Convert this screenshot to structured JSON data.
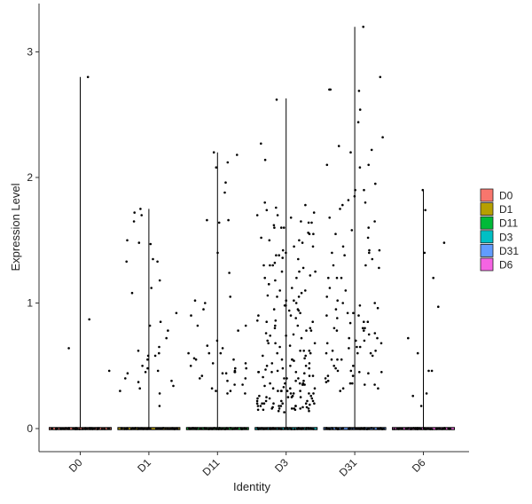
{
  "chart_data": {
    "type": "violin",
    "xlabel": "Identity",
    "ylabel": "Expression Level",
    "ylim": [
      -0.18,
      3.3
    ],
    "yticks": [
      0,
      1,
      2,
      3
    ],
    "categories": [
      "D0",
      "D1",
      "D11",
      "D3",
      "D31",
      "D6"
    ],
    "violins": [
      {
        "name": "D0",
        "max": 2.8,
        "color": "#F8766D"
      },
      {
        "name": "D1",
        "max": 1.75,
        "color": "#B79F00"
      },
      {
        "name": "D11",
        "max": 2.2,
        "color": "#00BA38"
      },
      {
        "name": "D3",
        "max": 2.63,
        "color": "#00BFC4"
      },
      {
        "name": "D31",
        "max": 3.2,
        "color": "#619CFF"
      },
      {
        "name": "D6",
        "max": 1.9,
        "color": "#F564E3"
      }
    ],
    "points": [
      {
        "group": "D0",
        "values": [
          0.87,
          0.64,
          2.8,
          0.46
        ]
      },
      {
        "group": "D1",
        "values": [
          1.72,
          1.47,
          1.33,
          1.18,
          0.6,
          0.58,
          0.46,
          0.34,
          0.18,
          1.5,
          1.35,
          1.08,
          0.65,
          0.45,
          0.37,
          0.28,
          1.75,
          1.7,
          1.65,
          1.48,
          1.33,
          1.12,
          0.92,
          0.85,
          0.82,
          0.78,
          0.72,
          0.62,
          0.55,
          0.48,
          0.44,
          0.38,
          0.32,
          0.3,
          0.58,
          0.5,
          0.4
        ]
      },
      {
        "group": "D11",
        "values": [
          2.2,
          1.96,
          1.88,
          1.66,
          1.02,
          0.64,
          0.6,
          0.55,
          0.52,
          0.5,
          0.48,
          0.46,
          0.45,
          0.42,
          0.4,
          0.38,
          0.35,
          0.32,
          0.3,
          0.28,
          2.12,
          2.08,
          1.66,
          1.64,
          1.4,
          1.24,
          1.05,
          1.0,
          0.95,
          0.9,
          0.82,
          0.78,
          0.7,
          0.66,
          0.6,
          0.56,
          0.52,
          0.48,
          0.44,
          0.4,
          0.35,
          0.3,
          2.18,
          0.82,
          0.44,
          0.28,
          0.55,
          0.45,
          0.6
        ]
      },
      {
        "group": "D3",
        "values": [
          2.14,
          1.78,
          1.74,
          1.7,
          1.65,
          1.6,
          1.55,
          1.5,
          1.45,
          1.38,
          1.3,
          1.25,
          1.15,
          1.1,
          1.05,
          0.98,
          0.92,
          0.88,
          0.82,
          0.78,
          0.72,
          0.68,
          0.62,
          0.58,
          0.55,
          0.52,
          0.48,
          0.45,
          0.42,
          0.4,
          0.38,
          0.35,
          0.33,
          0.3,
          0.28,
          0.26,
          0.24,
          0.22,
          0.2,
          0.18,
          0.16,
          0.15,
          0.14,
          0.13,
          0.5,
          0.35,
          0.25,
          0.22,
          0.2,
          0.18,
          0.16,
          0.45,
          0.3,
          2.62,
          2.27,
          1.8,
          1.76,
          1.72,
          1.68,
          1.64,
          1.6,
          1.56,
          1.52,
          1.48,
          1.42,
          1.36,
          1.32,
          1.28,
          1.22,
          1.18,
          1.12,
          1.06,
          1.02,
          0.98,
          0.94,
          0.9,
          0.86,
          0.82,
          0.78,
          0.74,
          0.7,
          0.66,
          0.62,
          0.58,
          0.54,
          0.5,
          0.47,
          0.44,
          0.41,
          0.38,
          0.36,
          0.34,
          0.32,
          0.3,
          0.28,
          0.26,
          0.24,
          0.22,
          0.2,
          0.19,
          0.18,
          0.17,
          0.16,
          0.15,
          0.14,
          1.25,
          1.08,
          0.95,
          0.85,
          0.76,
          0.68,
          0.6,
          0.52,
          0.46,
          0.4,
          0.36,
          0.32,
          0.28,
          0.25,
          0.22,
          0.2,
          0.18,
          0.17,
          0.16,
          1.64,
          1.5,
          1.38,
          1.3,
          1.2,
          1.1,
          1.02,
          0.94,
          0.86,
          0.8,
          0.74,
          0.68,
          0.62,
          0.56,
          0.5,
          0.45,
          0.4,
          0.36,
          0.32,
          0.28,
          0.26,
          0.24,
          0.22,
          0.2,
          0.18,
          0.17,
          0.16,
          0.15,
          1.7,
          1.62,
          1.55,
          1.45,
          1.35,
          1.25,
          1.15,
          1.05,
          0.95,
          0.85,
          0.75,
          0.65,
          0.55,
          0.48,
          0.42,
          0.36,
          0.3,
          0.25,
          0.2,
          0.16,
          1.6,
          1.4,
          1.2,
          1.0,
          0.8,
          0.6,
          0.45,
          0.35,
          0.25,
          0.18,
          1.3,
          0.9,
          0.55,
          0.3,
          0.2
        ]
      },
      {
        "group": "D31",
        "values": [
          2.54,
          2.1,
          2.08,
          1.9,
          1.65,
          1.52,
          1.3,
          1.2,
          1.1,
          1.0,
          0.95,
          0.9,
          0.85,
          0.8,
          0.78,
          0.75,
          0.72,
          0.7,
          0.68,
          0.65,
          0.62,
          0.6,
          0.55,
          0.5,
          0.46,
          0.44,
          0.4,
          0.37,
          2.7,
          2.7,
          2.69,
          2.2,
          2.1,
          1.95,
          1.85,
          1.8,
          1.75,
          1.68,
          1.6,
          1.55,
          1.45,
          1.4,
          1.35,
          1.28,
          1.2,
          1.12,
          1.05,
          1.0,
          0.96,
          0.92,
          0.88,
          0.84,
          0.8,
          0.76,
          0.72,
          0.68,
          0.64,
          0.6,
          0.55,
          0.5,
          0.46,
          0.42,
          0.38,
          0.35,
          0.32,
          0.3,
          2.44,
          2.32,
          1.82,
          1.78,
          1.42,
          1.02,
          0.98,
          0.92,
          0.85,
          0.78,
          0.7,
          0.62,
          0.55,
          0.48,
          0.42,
          0.36,
          0.32,
          2.8,
          2.22,
          1.42,
          1.38,
          1.2,
          0.8,
          0.6,
          0.45,
          0.35,
          3.2,
          2.25,
          1.9,
          1.58,
          1.4,
          1.3,
          0.9,
          0.65,
          0.58,
          0.45,
          0.36
        ]
      },
      {
        "group": "D6",
        "values": [
          1.9,
          0.72,
          0.26,
          1.48,
          1.2,
          1.74,
          1.4,
          0.6,
          0.46,
          0.97,
          0.46,
          0.28,
          0.18
        ]
      }
    ],
    "legend": {
      "position": "right",
      "entries": [
        "D0",
        "D1",
        "D11",
        "D3",
        "D31",
        "D6"
      ]
    },
    "grid": false
  }
}
